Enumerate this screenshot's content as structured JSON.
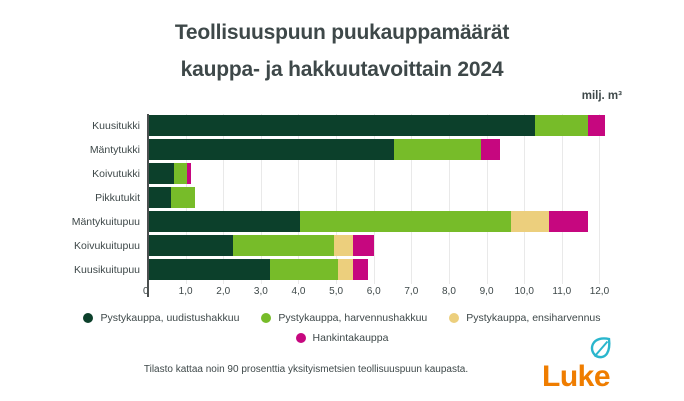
{
  "header": {
    "title_line1": "Teollisuuspuun puukauppamäärät",
    "title_line2": "kauppa- ja hakkuutavoittain 2024",
    "unit_label": "milj. m³"
  },
  "chart_data": {
    "type": "bar",
    "orientation": "horizontal",
    "stacked": true,
    "title": "Teollisuuspuun puukauppamäärät kauppa- ja hakkuutavoittain 2024",
    "unit": "milj. m³",
    "categories": [
      "Kuusitukki",
      "Mäntytukki",
      "Koivutukki",
      "Pikkutukit",
      "Mäntykuitupuu",
      "Koivukuitupuu",
      "Kuusikuitupuu"
    ],
    "series": [
      {
        "name": "Pystykauppa, uudistushakkuu",
        "color": "#0c402b",
        "values": [
          10.3,
          6.55,
          0.7,
          0.6,
          4.05,
          2.25,
          3.25
        ]
      },
      {
        "name": "Pystykauppa, harvennushakkuu",
        "color": "#77bc29",
        "values": [
          1.4,
          2.3,
          0.35,
          0.65,
          5.6,
          2.7,
          1.8
        ]
      },
      {
        "name": "Pystykauppa, ensiharvennus",
        "color": "#eccf7d",
        "values": [
          0,
          0,
          0,
          0,
          1.0,
          0.5,
          0.4
        ]
      },
      {
        "name": "Hankintakauppa",
        "color": "#c6077f",
        "values": [
          0.45,
          0.5,
          0.1,
          0,
          1.05,
          0.55,
          0.4
        ]
      }
    ],
    "x_ticks": [
      {
        "v": 0,
        "label": "0"
      },
      {
        "v": 1,
        "label": "1,0"
      },
      {
        "v": 2,
        "label": "2,0"
      },
      {
        "v": 3,
        "label": "3,0"
      },
      {
        "v": 4,
        "label": "4,0"
      },
      {
        "v": 5,
        "label": "5,0"
      },
      {
        "v": 6,
        "label": "6,0"
      },
      {
        "v": 7,
        "label": "7,0"
      },
      {
        "v": 8,
        "label": "8,0"
      },
      {
        "v": 9,
        "label": "9,0"
      },
      {
        "v": 10,
        "label": "10,0"
      },
      {
        "v": 11,
        "label": "11,0"
      },
      {
        "v": 12,
        "label": "12,0"
      }
    ],
    "xlim": [
      0,
      12.6
    ],
    "grid": true,
    "legend_position": "bottom"
  },
  "footer": {
    "note": "Tilasto kattaa noin 90 prosenttia yksityismetsien teollisuuspuun kaupasta.",
    "logo_text": "Luke"
  },
  "colors": {
    "text": "#3e4849",
    "axis": "#4b4f4f",
    "gridline": "#e9e9e9",
    "logo_orange": "#ef7d00",
    "logo_teal": "#2ab6cd"
  }
}
